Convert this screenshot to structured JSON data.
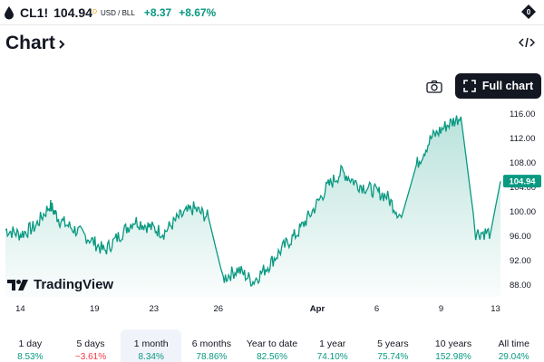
{
  "header": {
    "symbol": "CL1!",
    "price": "104.94",
    "price_sup": "D",
    "unit": "USD / BLL",
    "change": "+8.37",
    "change_pct": "+8.67%"
  },
  "title": "Chart",
  "buttons": {
    "full_chart": "Full chart"
  },
  "brand": "TradingView",
  "colors": {
    "accent": "#089981",
    "negative": "#f23645",
    "dark": "#131722"
  },
  "icons": [
    "drop-icon",
    "logo-icon",
    "chevron-right-icon",
    "embed-code-icon",
    "camera-icon",
    "fullscreen-icon"
  ],
  "chart_data": {
    "type": "area",
    "title": "",
    "xlabel": "",
    "ylabel": "",
    "ylim": [
      86,
      118
    ],
    "y_ticks": [
      "116.00",
      "112.00",
      "108.00",
      "104.00",
      "100.00",
      "96.00",
      "92.00",
      "88.00"
    ],
    "x_tick_labels": [
      "14",
      "19",
      "23",
      "26",
      "Apr",
      "6",
      "9",
      "13"
    ],
    "last_value_label": "104.94",
    "x": [
      0,
      3,
      6,
      9,
      11,
      14,
      17,
      20,
      23,
      26,
      29,
      32,
      35,
      38,
      41,
      44,
      47,
      50,
      53,
      56,
      59,
      62,
      65,
      68,
      71,
      74,
      77,
      80,
      83,
      86,
      89,
      92,
      95,
      98,
      100
    ],
    "series": [
      {
        "values": [
          97.0,
          96.2,
          97.5,
          101.0,
          98.5,
          97.0,
          95.5,
          93.5,
          96.0,
          98.5,
          97.5,
          96.5,
          99.0,
          100.5,
          99.0,
          89.0,
          90.5,
          88.5,
          91.0,
          94.0,
          96.5,
          100.0,
          104.0,
          106.5,
          104.5,
          103.5,
          102.5,
          99.0,
          107.5,
          112.0,
          114.0,
          115.5,
          96.5,
          96.5,
          104.94
        ]
      }
    ]
  },
  "ranges": [
    {
      "label": "1 day",
      "pct": "8.53%",
      "dir": "pos"
    },
    {
      "label": "5 days",
      "pct": "−3.61%",
      "dir": "neg"
    },
    {
      "label": "1 month",
      "pct": "8.34%",
      "dir": "pos",
      "active": true
    },
    {
      "label": "6 months",
      "pct": "78.86%",
      "dir": "pos"
    },
    {
      "label": "Year to date",
      "pct": "82.56%",
      "dir": "pos"
    },
    {
      "label": "1 year",
      "pct": "74.10%",
      "dir": "pos"
    },
    {
      "label": "5 years",
      "pct": "75.74%",
      "dir": "pos"
    },
    {
      "label": "10 years",
      "pct": "152.98%",
      "dir": "pos"
    },
    {
      "label": "All time",
      "pct": "29.04%",
      "dir": "pos"
    }
  ]
}
